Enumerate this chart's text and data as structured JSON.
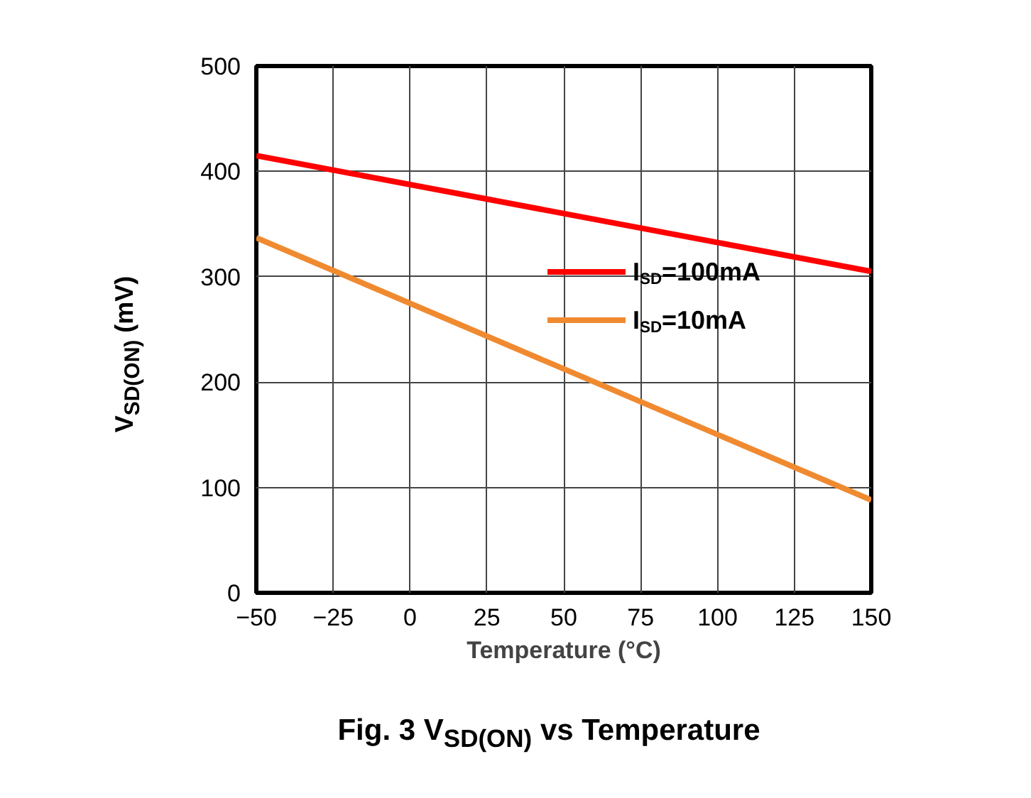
{
  "chart_data": {
    "type": "line",
    "title": "Fig. 3 V$_{SD(ON)}$ vs Temperature",
    "xlabel": "Temperature (°C)",
    "ylabel": "V$_{SD(ON)}$ (mV)",
    "x": [
      -50,
      150
    ],
    "series": [
      {
        "name": "I$_{SD}$=100mA",
        "color": "#ff0000",
        "values": [
          415,
          305
        ]
      },
      {
        "name": "I$_{SD}$=10mA",
        "color": "#f08a30",
        "values": [
          337,
          88
        ]
      }
    ],
    "xlim": [
      -50,
      150
    ],
    "xticks": [
      -50,
      -25,
      0,
      25,
      50,
      75,
      100,
      125,
      150
    ],
    "ylim": [
      0,
      500
    ],
    "yticks": [
      0,
      100,
      200,
      300,
      400,
      500
    ],
    "grid": true,
    "legend": "right",
    "marker": "none",
    "line_style": "solid"
  }
}
